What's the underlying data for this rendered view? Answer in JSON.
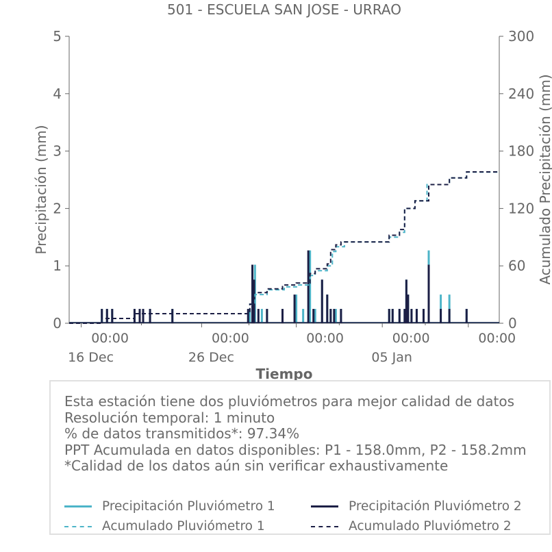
{
  "colors": {
    "p1": "#4db4c8",
    "p2": "#1c1f45",
    "axis": "#666666",
    "text": "#666666"
  },
  "chart_data": {
    "type": "line",
    "title": "501 - ESCUELA SAN JOSE - URRAO",
    "xlabel": "Tiempo",
    "ylabel": "Precipitación (mm)",
    "y2label": "Acumulado Precipitación (mm)",
    "ylim": [
      0,
      5
    ],
    "y2lim": [
      0,
      300
    ],
    "yticks": [
      "0",
      "1",
      "2",
      "3",
      "4",
      "5"
    ],
    "y2ticks": [
      "0",
      "60",
      "120",
      "180",
      "240",
      "300"
    ],
    "xlim_days": [
      -1.7,
      23.3
    ],
    "xticks": [
      {
        "day": -1.0,
        "line1": "00:00",
        "line2": "16 Dec"
      },
      {
        "day": 6.0,
        "line1": "00:00",
        "line2": "26 Dec"
      },
      {
        "day": 11.5,
        "line1": "00:00",
        "line2": ""
      },
      {
        "day": 16.5,
        "line1": "00:00",
        "line2": "05 Jan"
      },
      {
        "day": 21.5,
        "line1": "00:00",
        "line2": ""
      }
    ],
    "grid": false,
    "legend_position": "bottom",
    "series": [
      {
        "name": "Precipitación Pluviómetro 1",
        "style": "solid",
        "bars": [
          [
            0.2,
            0.25
          ],
          [
            0.5,
            0.25
          ],
          [
            0.8,
            0.25
          ],
          [
            2.1,
            0.25
          ],
          [
            2.4,
            0.25
          ],
          [
            2.6,
            0.25
          ],
          [
            3.0,
            0.25
          ],
          [
            4.3,
            0.25
          ],
          [
            8.8,
            0.25
          ],
          [
            9.1,
            1.02
          ],
          [
            9.5,
            0.25
          ],
          [
            9.8,
            0.25
          ],
          [
            10.7,
            0.25
          ],
          [
            11.5,
            0.5
          ],
          [
            11.9,
            0.25
          ],
          [
            12.3,
            1.27
          ],
          [
            12.6,
            0.25
          ],
          [
            13.0,
            0.76
          ],
          [
            13.3,
            0.5
          ],
          [
            13.5,
            0.25
          ],
          [
            13.8,
            0.25
          ],
          [
            14.1,
            0.25
          ],
          [
            16.9,
            0.25
          ],
          [
            17.1,
            0.25
          ],
          [
            17.5,
            0.25
          ],
          [
            17.8,
            0.25
          ],
          [
            17.9,
            0.76
          ],
          [
            18.0,
            0.5
          ],
          [
            18.2,
            0.25
          ],
          [
            18.5,
            0.25
          ],
          [
            18.9,
            0.25
          ],
          [
            19.2,
            1.27
          ],
          [
            19.9,
            0.5
          ],
          [
            20.4,
            0.5
          ],
          [
            21.4,
            0.25
          ]
        ]
      },
      {
        "name": "Precipitación Pluviómetro 2",
        "style": "solid",
        "bars": [
          [
            0.2,
            0.25
          ],
          [
            0.5,
            0.25
          ],
          [
            0.8,
            0.25
          ],
          [
            2.1,
            0.25
          ],
          [
            2.4,
            0.25
          ],
          [
            2.6,
            0.25
          ],
          [
            3.0,
            0.25
          ],
          [
            4.3,
            0.25
          ],
          [
            8.7,
            0.25
          ],
          [
            8.95,
            1.02
          ],
          [
            9.05,
            0.76
          ],
          [
            9.3,
            0.25
          ],
          [
            9.8,
            0.25
          ],
          [
            10.7,
            0.25
          ],
          [
            11.4,
            0.5
          ],
          [
            12.2,
            1.27
          ],
          [
            12.5,
            0.25
          ],
          [
            13.0,
            0.76
          ],
          [
            13.3,
            0.5
          ],
          [
            13.5,
            0.25
          ],
          [
            13.7,
            0.25
          ],
          [
            14.1,
            0.25
          ],
          [
            16.9,
            0.25
          ],
          [
            17.1,
            0.25
          ],
          [
            17.5,
            0.25
          ],
          [
            17.8,
            0.25
          ],
          [
            17.9,
            0.76
          ],
          [
            18.0,
            0.5
          ],
          [
            18.2,
            0.25
          ],
          [
            18.5,
            0.25
          ],
          [
            18.9,
            0.25
          ],
          [
            19.2,
            1.02
          ],
          [
            19.9,
            0.25
          ],
          [
            20.4,
            0.25
          ],
          [
            21.4,
            0.25
          ]
        ]
      },
      {
        "name": "Acumulado Pluviómetro 1",
        "style": "dashed",
        "points": [
          [
            -1.7,
            0
          ],
          [
            0.2,
            0
          ],
          [
            0.2,
            5
          ],
          [
            2.1,
            5
          ],
          [
            2.1,
            10
          ],
          [
            8.8,
            10
          ],
          [
            8.8,
            20
          ],
          [
            9.1,
            20
          ],
          [
            9.1,
            30
          ],
          [
            9.8,
            30
          ],
          [
            9.8,
            35
          ],
          [
            10.8,
            35
          ],
          [
            10.8,
            38
          ],
          [
            11.6,
            38
          ],
          [
            11.6,
            40
          ],
          [
            12.3,
            40
          ],
          [
            12.3,
            50
          ],
          [
            12.6,
            50
          ],
          [
            12.6,
            55
          ],
          [
            13.3,
            55
          ],
          [
            13.3,
            60
          ],
          [
            13.6,
            60
          ],
          [
            13.6,
            75
          ],
          [
            13.8,
            75
          ],
          [
            13.8,
            80
          ],
          [
            14.3,
            80
          ],
          [
            14.3,
            85
          ],
          [
            16.9,
            85
          ],
          [
            16.9,
            90
          ],
          [
            17.5,
            90
          ],
          [
            17.5,
            95
          ],
          [
            17.8,
            95
          ],
          [
            17.8,
            120
          ],
          [
            18.4,
            120
          ],
          [
            18.4,
            128
          ],
          [
            19.1,
            128
          ],
          [
            19.1,
            145
          ],
          [
            20.4,
            145
          ],
          [
            20.4,
            152
          ],
          [
            21.4,
            152
          ],
          [
            21.4,
            158
          ],
          [
            23.3,
            158
          ]
        ]
      },
      {
        "name": "Acumulado Pluviómetro 2",
        "style": "dashed",
        "points": [
          [
            -1.7,
            0
          ],
          [
            0.2,
            0
          ],
          [
            0.2,
            5
          ],
          [
            2.1,
            5
          ],
          [
            2.1,
            10
          ],
          [
            8.8,
            10
          ],
          [
            8.8,
            20
          ],
          [
            9.0,
            20
          ],
          [
            9.0,
            32
          ],
          [
            9.8,
            32
          ],
          [
            9.8,
            36
          ],
          [
            10.7,
            36
          ],
          [
            10.7,
            40
          ],
          [
            11.5,
            40
          ],
          [
            11.5,
            42
          ],
          [
            12.3,
            42
          ],
          [
            12.3,
            52
          ],
          [
            12.6,
            52
          ],
          [
            12.6,
            57
          ],
          [
            13.3,
            57
          ],
          [
            13.3,
            62
          ],
          [
            13.5,
            62
          ],
          [
            13.5,
            77
          ],
          [
            13.8,
            77
          ],
          [
            13.8,
            82
          ],
          [
            14.1,
            82
          ],
          [
            14.1,
            85
          ],
          [
            16.9,
            85
          ],
          [
            16.9,
            92
          ],
          [
            17.5,
            92
          ],
          [
            17.5,
            98
          ],
          [
            17.8,
            98
          ],
          [
            17.8,
            120
          ],
          [
            18.4,
            120
          ],
          [
            18.4,
            128
          ],
          [
            19.2,
            128
          ],
          [
            19.2,
            145
          ],
          [
            20.4,
            145
          ],
          [
            20.4,
            152
          ],
          [
            21.4,
            152
          ],
          [
            21.4,
            158.2
          ],
          [
            23.3,
            158.2
          ]
        ]
      }
    ]
  },
  "info": {
    "lines": [
      "Esta estación tiene dos pluviómetros para mejor calidad de datos",
      "Resolución temporal: 1 minuto",
      "% de datos transmitidos*: 97.34%",
      "PPT Acumulada en datos disponibles: P1 - 158.0mm, P2 - 158.2mm",
      "*Calidad de los datos aún sin verificar exhaustivamente"
    ]
  },
  "legend": {
    "p1_label": "Precipitación Pluviómetro 1",
    "p2_label": "Precipitación Pluviómetro 2",
    "a1_label": "Acumulado Pluviómetro 1",
    "a2_label": "Acumulado Pluviómetro 2"
  }
}
